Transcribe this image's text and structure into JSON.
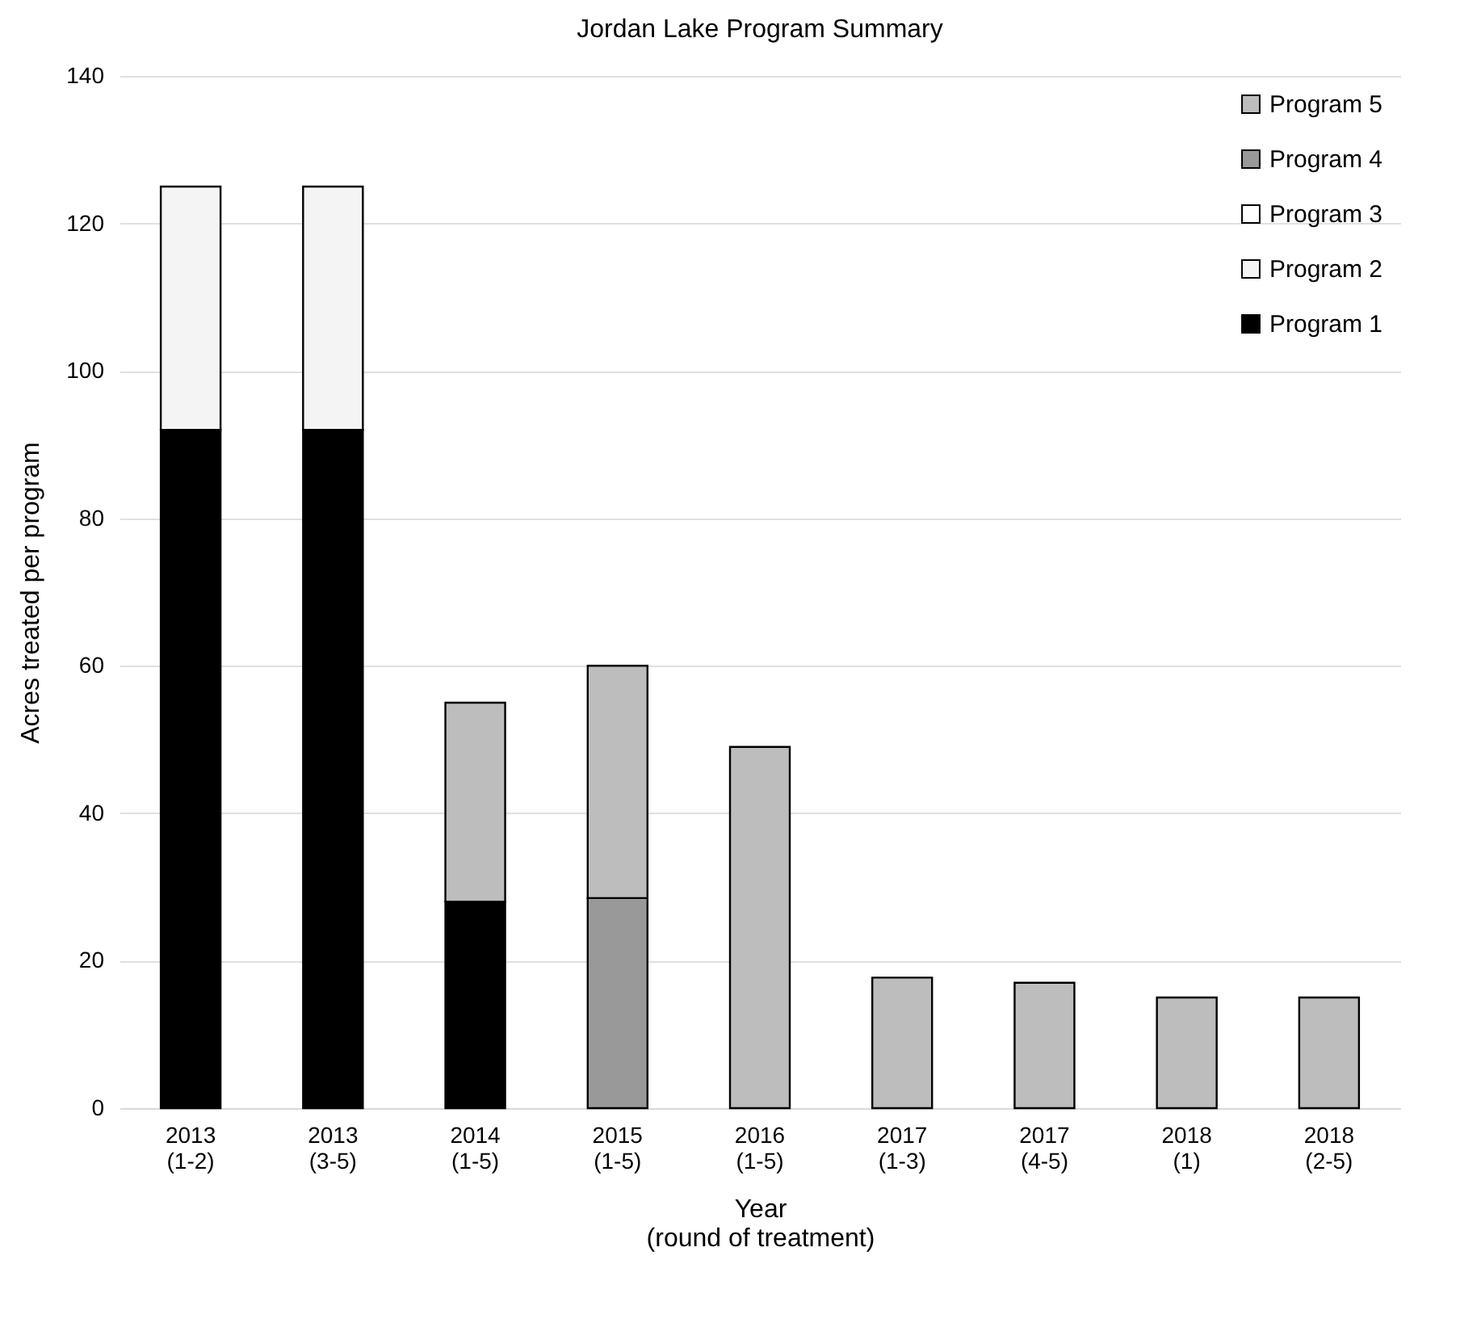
{
  "chart_data": {
    "type": "bar",
    "title": "Jordan Lake Program Summary",
    "xlabel": "Year\n(round of treatment)",
    "ylabel": "Acres treated per program",
    "categories": [
      "2013\n(1-2)",
      "2013\n(3-5)",
      "2014\n(1-5)",
      "2015\n(1-5)",
      "2016\n(1-5)",
      "2017\n(1-3)",
      "2017\n(4-5)",
      "2018\n(1)",
      "2018\n(2-5)"
    ],
    "stacked": true,
    "series": [
      {
        "name": "Program 1",
        "color": "#000000",
        "values": [
          92,
          92,
          28,
          null,
          null,
          null,
          null,
          null,
          null
        ]
      },
      {
        "name": "Program 2",
        "color": "#f4f4f4",
        "values": [
          33,
          33,
          null,
          null,
          null,
          null,
          null,
          null,
          null
        ]
      },
      {
        "name": "Program 3",
        "color": "#ffffff",
        "values": [
          null,
          null,
          null,
          null,
          null,
          null,
          null,
          null,
          null
        ]
      },
      {
        "name": "Program 4",
        "color": "#999999",
        "values": [
          null,
          null,
          null,
          28.5,
          null,
          null,
          null,
          null,
          null
        ]
      },
      {
        "name": "Program 5",
        "color": "#bdbdbd",
        "values": [
          null,
          null,
          27,
          31.5,
          49,
          17.7,
          17,
          15,
          15
        ]
      }
    ],
    "ylim": [
      0,
      140
    ],
    "yticks": [
      0,
      20,
      40,
      60,
      80,
      100,
      120,
      140
    ],
    "grid": "y",
    "legend": "top right"
  }
}
